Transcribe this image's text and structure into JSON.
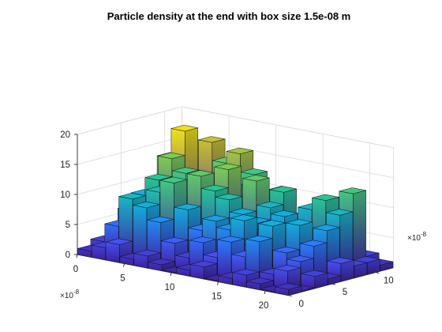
{
  "chart_data": {
    "type": "bar3",
    "title": "Particle density at the end with box size 1.5e-08 m",
    "x_axis": {
      "ticks": [
        0,
        5,
        10,
        15,
        20
      ],
      "tick_labels": [
        "0",
        "5",
        "10",
        "15",
        "20"
      ],
      "exponent": "-8",
      "range": [
        0,
        22.5
      ]
    },
    "y_axis": {
      "ticks": [
        0,
        5,
        10
      ],
      "tick_labels": [
        "0",
        "5",
        "10"
      ],
      "exponent": "-8",
      "range": [
        0,
        12
      ]
    },
    "z_axis": {
      "ticks": [
        0,
        5,
        10,
        15,
        20
      ],
      "tick_labels": [
        "0",
        "5",
        "10",
        "15",
        "20"
      ],
      "range": [
        0,
        20
      ]
    },
    "grid": true,
    "colormap": "parula",
    "bin_size": 1.5,
    "x_bins": [
      0.75,
      2.25,
      3.75,
      5.25,
      6.75,
      8.25,
      9.75,
      11.25,
      12.75,
      14.25,
      15.75,
      17.25,
      18.75,
      20.25,
      21.75
    ],
    "y_bins": [
      0.75,
      2.25,
      3.75,
      5.25,
      6.75,
      8.25,
      9.75,
      11.25
    ],
    "heights": [
      [
        1,
        2,
        1,
        1,
        0,
        1,
        2,
        1
      ],
      [
        2,
        5,
        7,
        9,
        8,
        14,
        12,
        3
      ],
      [
        3,
        10,
        8,
        12,
        15,
        19,
        9,
        4
      ],
      [
        1,
        9,
        11,
        8,
        13,
        12,
        17,
        6
      ],
      [
        2,
        7,
        13,
        10,
        9,
        11,
        14,
        5
      ],
      [
        1,
        4,
        9,
        14,
        12,
        8,
        16,
        7
      ],
      [
        0,
        2,
        6,
        12,
        15,
        10,
        13,
        4
      ],
      [
        1,
        5,
        8,
        11,
        9,
        12,
        10,
        3
      ],
      [
        2,
        3,
        7,
        9,
        14,
        8,
        11,
        5
      ],
      [
        0,
        6,
        9,
        8,
        10,
        12,
        7,
        2
      ],
      [
        1,
        4,
        5,
        7,
        9,
        6,
        5,
        3
      ],
      [
        2,
        7,
        9,
        8,
        7,
        10,
        6,
        2
      ],
      [
        1,
        2,
        5,
        9,
        6,
        12,
        9,
        4
      ],
      [
        0,
        3,
        4,
        6,
        8,
        10,
        13,
        2
      ],
      [
        1,
        0,
        2,
        1,
        3,
        2,
        2,
        1
      ]
    ]
  }
}
